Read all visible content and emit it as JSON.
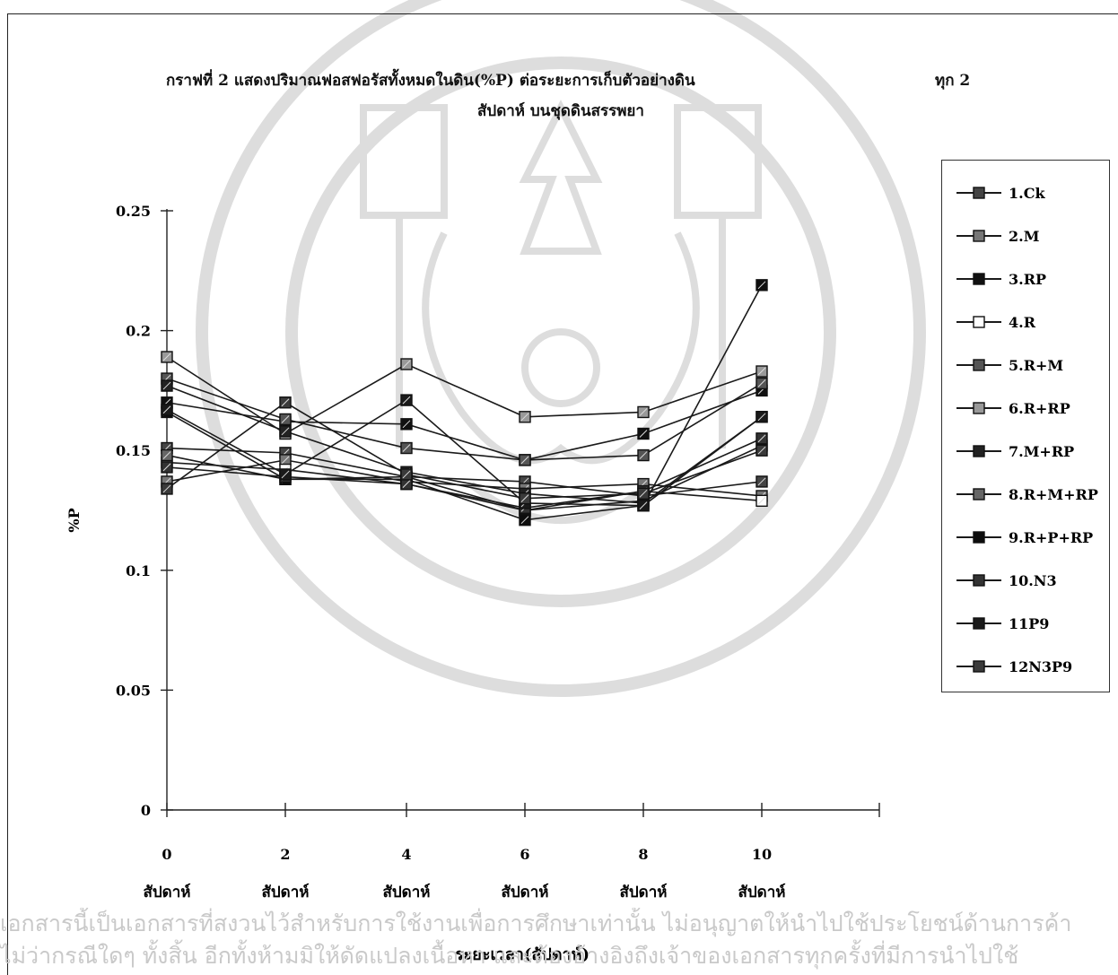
{
  "title": {
    "line1": "กราฟที่  2  แสดงปริมาณฟอสฟอรัสทั้งหมดในดิน(%P)  ต่อระยะการเก็บตัวอย่างดิน",
    "line1_right": "ทุก  2",
    "line2": "สัปดาห์  บนชุดดินสรรพยา"
  },
  "watermark_text": {
    "line1": "เอกสารนี้เป็นเอกสารที่สงวนไว้สำหรับการใช้งานเพื่อการศึกษาเท่านั้น ไม่อนุญาตให้นำไปใช้ประโยชน์ด้านการค้า",
    "line2": "ไม่ว่ากรณีใดๆ ทั้งสิ้น อีกทั้งห้ามมิให้ดัดแปลงเนื้อหา และต้องอ้างอิงถึงเจ้าของเอกสารทุกครั้งที่มีการนำไปใช้"
  },
  "chart_data": {
    "type": "line",
    "title": "กราฟที่ 2 แสดงปริมาณฟอสฟอรัสทั้งหมดในดิน(%P) ต่อระยะการเก็บตัวอย่างดิน ทุก 2 สัปดาห์ บนชุดดินสรรพยา",
    "xlabel": "ระยะเวลา(สัปดาห์)",
    "ylabel": "%P",
    "x_tick_numbers": [
      "0",
      "2",
      "4",
      "6",
      "8",
      "10"
    ],
    "x_tick_unit": "สัปดาห์",
    "y_ticks": [
      "0",
      "0.05",
      "0.1",
      "0.15",
      "0.2",
      "0.25"
    ],
    "ylim": [
      0,
      0.25
    ],
    "grid": false,
    "legend_position": "right",
    "x": [
      0,
      2,
      4,
      6,
      8,
      10
    ],
    "series": [
      {
        "name": "1.Ck",
        "values": [
          0.151,
          0.149,
          0.139,
          0.137,
          0.131,
          0.137
        ]
      },
      {
        "name": "2.M",
        "values": [
          0.137,
          0.146,
          0.137,
          0.134,
          0.136,
          0.131
        ]
      },
      {
        "name": "3.RP",
        "values": [
          0.17,
          0.162,
          0.161,
          0.146,
          0.157,
          0.175
        ]
      },
      {
        "name": "4.R",
        "values": [
          0.145,
          0.142,
          0.136,
          0.125,
          0.133,
          0.129
        ]
      },
      {
        "name": "5.R+M",
        "values": [
          0.18,
          0.163,
          0.151,
          0.146,
          0.148,
          0.178
        ]
      },
      {
        "name": "6.R+RP",
        "values": [
          0.189,
          0.157,
          0.186,
          0.164,
          0.166,
          0.183
        ]
      },
      {
        "name": "7.M+RP",
        "values": [
          0.177,
          0.158,
          0.141,
          0.132,
          0.128,
          0.164
        ]
      },
      {
        "name": "8.R+M+RP",
        "values": [
          0.148,
          0.138,
          0.139,
          0.125,
          0.129,
          0.152
        ]
      },
      {
        "name": "9.R+P+RP",
        "values": [
          0.166,
          0.138,
          0.138,
          0.121,
          0.127,
          0.219
        ]
      },
      {
        "name": "10.N3",
        "values": [
          0.143,
          0.139,
          0.136,
          0.126,
          0.133,
          0.155
        ]
      },
      {
        "name": "11P9",
        "values": [
          0.167,
          0.14,
          0.171,
          0.128,
          0.127,
          0.164
        ]
      },
      {
        "name": "12N3P9",
        "values": [
          0.134,
          0.17,
          0.14,
          0.13,
          0.132,
          0.15
        ]
      }
    ]
  }
}
